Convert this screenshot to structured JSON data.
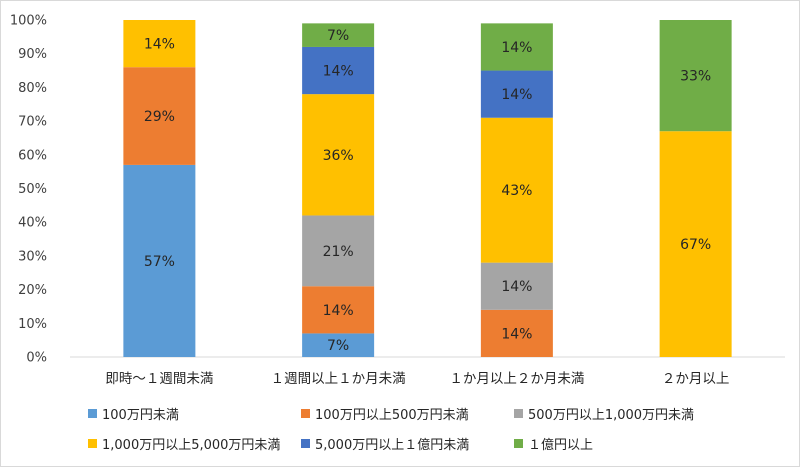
{
  "chart_data": {
    "type": "bar",
    "stacked": true,
    "percent_stacked": true,
    "categories": [
      "即時～１週間未満",
      "１週間以上１か月未満",
      "１か月以上２か月未満",
      "２か月以上"
    ],
    "series": [
      {
        "name": "100万円未満",
        "color": "#5b9bd5",
        "values": [
          57,
          7,
          0,
          0
        ]
      },
      {
        "name": "100万円以上500万円未満",
        "color": "#ed7d31",
        "values": [
          29,
          14,
          14,
          0
        ]
      },
      {
        "name": "500万円以上1,000万円未満",
        "color": "#a5a5a5",
        "values": [
          0,
          21,
          14,
          0
        ]
      },
      {
        "name": "1,000万円以上5,000万円未満",
        "color": "#ffc000",
        "values": [
          14,
          36,
          43,
          67
        ]
      },
      {
        "name": "5,000万円以上１億円未満",
        "color": "#4472c4",
        "values": [
          0,
          14,
          14,
          0
        ]
      },
      {
        "name": "１億円以上",
        "color": "#70ad47",
        "values": [
          0,
          7,
          14,
          33
        ]
      }
    ],
    "y_ticks": [
      "0%",
      "10%",
      "20%",
      "30%",
      "40%",
      "50%",
      "60%",
      "70%",
      "80%",
      "90%",
      "100%"
    ],
    "ylim": [
      0,
      100
    ],
    "grid": false,
    "legend_position": "bottom",
    "data_label_suffix": "%"
  }
}
